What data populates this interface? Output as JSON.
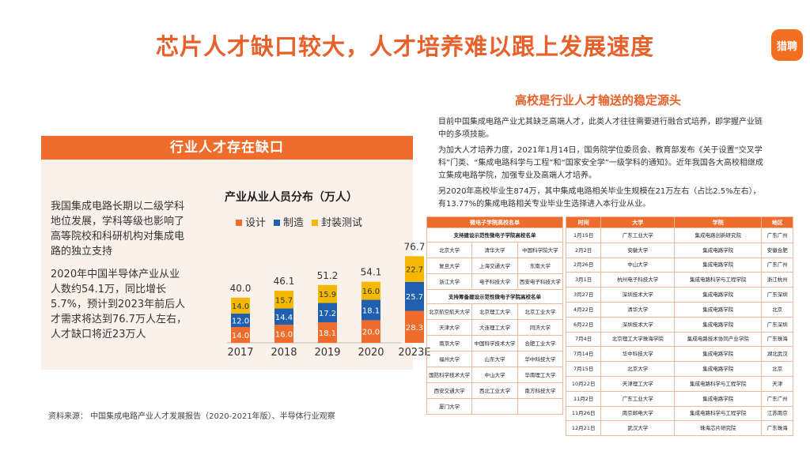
{
  "title": "芯片人才缺口较大，人才培养难以跟上发展速度",
  "logo_text": "猎聘",
  "left": {
    "header": "行业人才存在缺口",
    "paragraph1": "我国集成电路长期以二级学科地位发展，学科等级也影响了高等院校和科研机构对集成电路的独立支持",
    "paragraph2": "2020年中国半导体产业从业人数约54.1万，同比增长5.7%，预计到2023年前后人才需求将达到76.7万人左右，人才缺口将近23万人"
  },
  "chart_data": {
    "type": "bar",
    "stacked": true,
    "title": "产业从业人员分布（万人）",
    "categories": [
      "2017",
      "2018",
      "2019",
      "2020",
      "2023E"
    ],
    "series": [
      {
        "name": "设计",
        "color": "#ee6d2d",
        "values": [
          14.0,
          16.0,
          18.1,
          20.0,
          28.3
        ]
      },
      {
        "name": "制造",
        "color": "#1f5fae",
        "values": [
          12.0,
          14.4,
          17.2,
          18.1,
          25.7
        ]
      },
      {
        "name": "封装测试",
        "color": "#f5b800",
        "values": [
          14.0,
          15.7,
          15.9,
          16.0,
          22.7
        ]
      }
    ],
    "totals": [
      "40.0",
      "46.1",
      "51.2",
      "54.1",
      "76.7"
    ],
    "labels": [
      [
        "14.0",
        "16.0",
        "18.1",
        "20.0",
        "28.3"
      ],
      [
        "12.0",
        "14.4",
        "17.2",
        "18.1",
        "25.7"
      ],
      [
        "14.0",
        "15.7",
        "15.9",
        "16.0",
        "22.7"
      ]
    ],
    "ylim": [
      0,
      80
    ]
  },
  "right": {
    "heading": "高校是行业人才输送的稳定源头",
    "p1": "目前中国集成电路产业尤其缺乏高端人才，此类人才往往需要进行融合式培养，即学握产业链中的多项技能。",
    "p2": "为加大人才培养力度，2021年1月14日，国务院学位委员会、教育部发布《关于设置“交叉学科”门类、“集成电路科学与工程”和“国家安全学”一级学科的通知》。近年我国各大高校相继成立集成电路学院，加强专业及高端人才培养。",
    "p3": "另2020年高校毕业生874万，其中集成电路相关毕业生规模在21万左右（占比2.5%左右），有13.77%的集成电路相关专业毕业生选择进入本行业从业。"
  },
  "table_left": {
    "header": "微电子学院高校名单",
    "sub1": "支持建设示范性微电子学院高校名单",
    "rows1": [
      [
        "北京大学",
        "清华大学",
        "中国科学院大学"
      ],
      [
        "复旦大学",
        "上海交通大学",
        "东南大学"
      ],
      [
        "浙江大学",
        "电子科技大学",
        "西安电子科技大学"
      ]
    ],
    "sub2": "支持筹备建设示范性微电子学院高校名单",
    "rows2": [
      [
        "北京航空航天大学",
        "北京理工大学",
        "北京工业大学"
      ],
      [
        "天津大学",
        "大连理工大学",
        "同济大学"
      ],
      [
        "南京大学",
        "中国科学技术大学",
        "合肥工业大学"
      ],
      [
        "福州大学",
        "山东大学",
        "华中科技大学"
      ],
      [
        "国防科学技术大学",
        "中山大学",
        "华南理工大学"
      ],
      [
        "西安交通大学",
        "西北工业大学",
        "南方科技大学"
      ],
      [
        "厦门大学",
        "",
        ""
      ]
    ]
  },
  "table_right": {
    "headers": [
      "时间",
      "大学",
      "学院",
      "地区"
    ],
    "rows": [
      [
        "1月15日",
        "广东工业大学",
        "集成电路创新研究院",
        "广东广州"
      ],
      [
        "2月2日",
        "安徽大学",
        "集成电路学院",
        "安徽合肥"
      ],
      [
        "2月26日",
        "中山大学",
        "集成电路学院",
        "广东广州"
      ],
      [
        "3月1日",
        "杭州电子科技大学",
        "集成电路科学与工程学院",
        "浙江杭州"
      ],
      [
        "3月27日",
        "深圳技术大学",
        "集成电路学院",
        "广东深圳"
      ],
      [
        "4月22日",
        "清华大学",
        "集成电路学院",
        "北京"
      ],
      [
        "6月22日",
        "深圳技术大学",
        "集成电路学院",
        "广东深圳"
      ],
      [
        "7月4日",
        "北京理工大学珠海学院",
        "集成电路技术协同产业学院",
        "广东珠海"
      ],
      [
        "7月14日",
        "华中科技大学",
        "集成电路学院",
        "湖北武汉"
      ],
      [
        "7月15日",
        "北京大学",
        "集成电路学院",
        "北京"
      ],
      [
        "10月22日",
        "天津理工大学",
        "集成电路科学与工程学院",
        "天津"
      ],
      [
        "11月2日",
        "广东工业大学",
        "集成电路学院",
        "广东广州"
      ],
      [
        "11月26日",
        "南京邮电大学",
        "集成电路科学与工程学院",
        "江苏南京"
      ],
      [
        "12月21日",
        "武汉大学",
        "珠海芯片研究院",
        "广东珠海"
      ]
    ]
  },
  "source": "资料来源：  中国集成电路产业人才发展报告（2020-2021年版）、半导体行业观察"
}
